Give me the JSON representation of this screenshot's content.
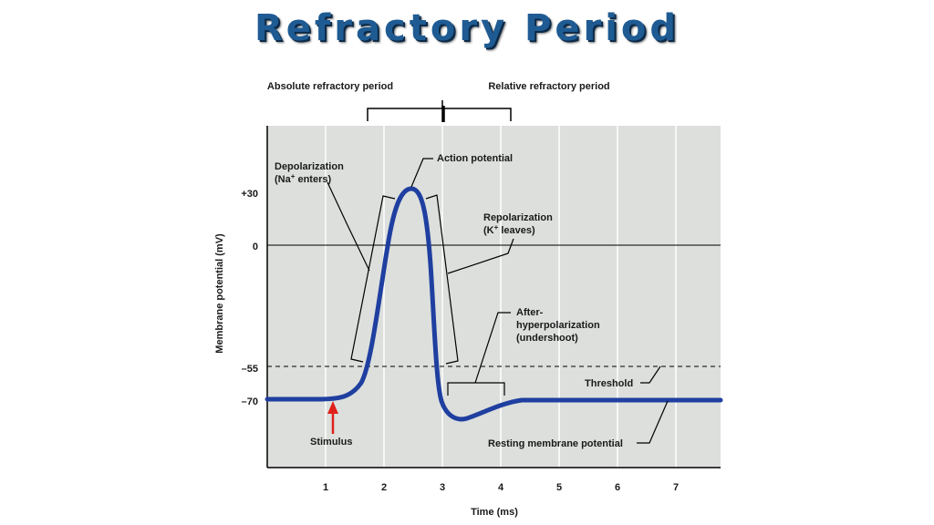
{
  "title": "Refractory Period",
  "periods": {
    "absolute": "Absolute refractory period",
    "relative": "Relative refractory period"
  },
  "axes": {
    "ylabel": "Membrane potential (mV)",
    "xlabel": "Time (ms)",
    "y_ticks": [
      "+30",
      "0",
      "–55",
      "–70"
    ],
    "x_ticks": [
      "1",
      "2",
      "3",
      "4",
      "5",
      "6",
      "7"
    ]
  },
  "labels": {
    "depolarization_line1": "Depolarization",
    "depolarization_line2a": "(Na",
    "depolarization_line2b": "+",
    "depolarization_line2c": " enters)",
    "action_potential": "Action potential",
    "repolarization_line1": "Repolarization",
    "repolarization_line2a": "(K",
    "repolarization_line2b": "+",
    "repolarization_line2c": " leaves)",
    "after_line1": "After-",
    "after_line2": "hyperpolarization",
    "after_line3": "(undershoot)",
    "threshold": "Threshold",
    "stimulus": "Stimulus",
    "resting": "Resting membrane potential"
  },
  "colors": {
    "trace": "#1f3fa0",
    "stimulus_arrow": "#e0201a",
    "plot_bg": "#dcdfdc",
    "title": "#1f5b93"
  }
}
